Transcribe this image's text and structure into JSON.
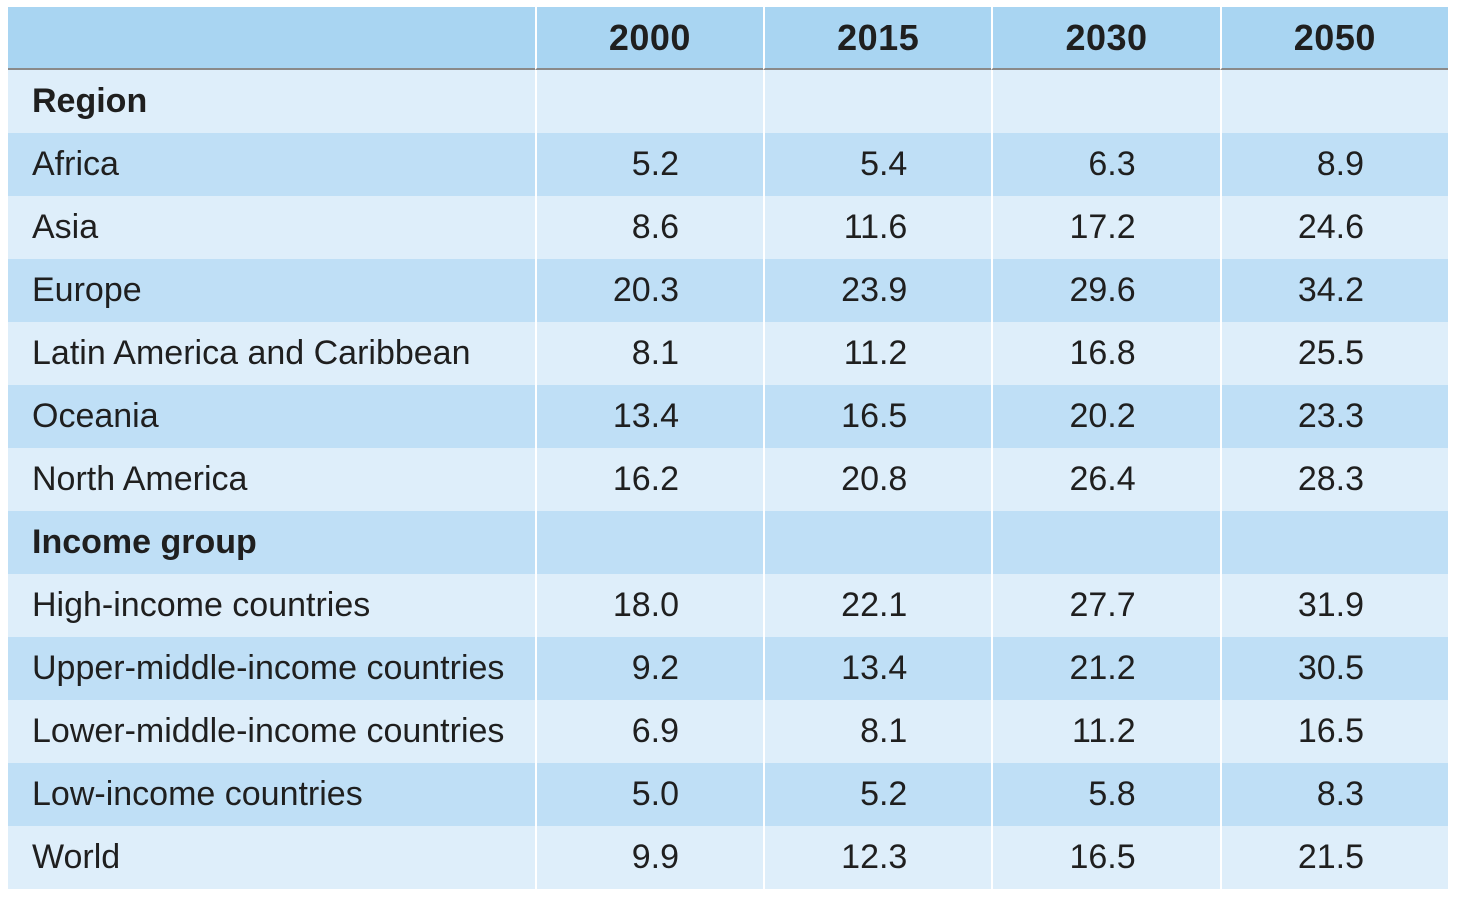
{
  "chart_data": {
    "type": "table",
    "columns": [
      "",
      "2000",
      "2015",
      "2030",
      "2050"
    ],
    "groups": [
      {
        "label": "Region",
        "rows": [
          {
            "label": "Africa",
            "values": [
              "5.2",
              "5.4",
              "6.3",
              "8.9"
            ]
          },
          {
            "label": "Asia",
            "values": [
              "8.6",
              "11.6",
              "17.2",
              "24.6"
            ]
          },
          {
            "label": "Europe",
            "values": [
              "20.3",
              "23.9",
              "29.6",
              "34.2"
            ]
          },
          {
            "label": "Latin America and Caribbean",
            "values": [
              "8.1",
              "11.2",
              "16.8",
              "25.5"
            ]
          },
          {
            "label": "Oceania",
            "values": [
              "13.4",
              "16.5",
              "20.2",
              "23.3"
            ]
          },
          {
            "label": "North America",
            "values": [
              "16.2",
              "20.8",
              "26.4",
              "28.3"
            ]
          }
        ]
      },
      {
        "label": "Income group",
        "rows": [
          {
            "label": "High-income countries",
            "values": [
              "18.0",
              "22.1",
              "27.7",
              "31.9"
            ]
          },
          {
            "label": "Upper-middle-income countries",
            "values": [
              "9.2",
              "13.4",
              "21.2",
              "30.5"
            ]
          },
          {
            "label": "Lower-middle-income countries",
            "values": [
              "6.9",
              "8.1",
              "11.2",
              "16.5"
            ]
          },
          {
            "label": "Low-income countries",
            "values": [
              "5.0",
              "5.2",
              "5.8",
              "8.3"
            ]
          },
          {
            "label": "World",
            "values": [
              "9.9",
              "12.3",
              "16.5",
              "21.5"
            ]
          }
        ]
      }
    ]
  },
  "colors": {
    "header_bg": "#a9d5f2",
    "row_light": "#deeefa",
    "row_dark": "#bfdff6"
  }
}
